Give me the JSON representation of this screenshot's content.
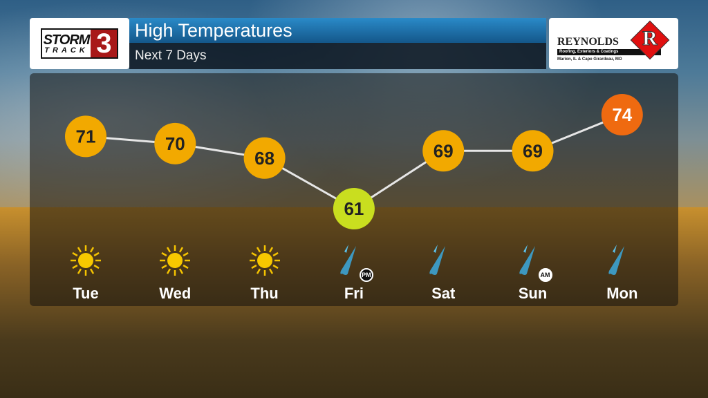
{
  "header": {
    "title": "High Temperatures",
    "subtitle": "Next 7 Days"
  },
  "logos": {
    "left": "STORM TRACK 3",
    "right": "REYNOLDS R Roofing, Exteriors & Coatings Marion, IL & Cape Girardeau, MO"
  },
  "colors": {
    "warm": "#f2a900",
    "cool": "#c9de1f",
    "hot": "#ef6a10",
    "line": "#e6e6e6"
  },
  "chart_data": {
    "type": "line",
    "categories": [
      "Tue",
      "Wed",
      "Thu",
      "Fri",
      "Sat",
      "Sun",
      "Mon"
    ],
    "values": [
      71,
      70,
      68,
      61,
      69,
      69,
      74
    ],
    "icons": [
      "sun-icon",
      "sun-icon",
      "sun-icon",
      "rain-icon",
      "rain-icon",
      "rain-icon",
      "rain-icon"
    ],
    "badges": [
      "",
      "",
      "",
      "PM",
      "",
      "AM",
      ""
    ]
  }
}
